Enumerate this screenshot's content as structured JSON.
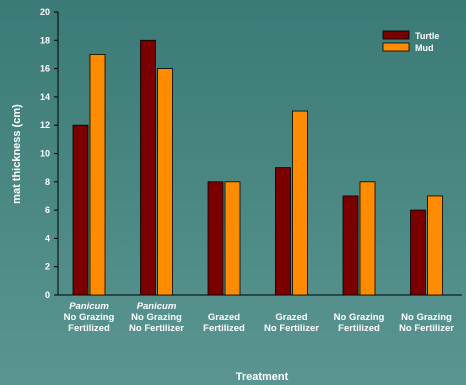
{
  "chart_data": {
    "type": "bar",
    "categories": [
      {
        "lines": [
          "Panicum",
          "No Grazing",
          "Fertilized"
        ],
        "italic_first": true
      },
      {
        "lines": [
          "Panicum",
          "No Grazing",
          "No Fertilizer"
        ],
        "italic_first": true
      },
      {
        "lines": [
          "Grazed",
          "Fertilized"
        ],
        "italic_first": false
      },
      {
        "lines": [
          "Grazed",
          "No Fertilizer"
        ],
        "italic_first": false
      },
      {
        "lines": [
          "No Grazing",
          "Fertilized"
        ],
        "italic_first": false
      },
      {
        "lines": [
          "No Grazing",
          "No Fertilizer"
        ],
        "italic_first": false
      }
    ],
    "series": [
      {
        "name": "Turtle",
        "color": "#7a0000",
        "values": [
          12,
          18,
          8,
          9,
          7,
          6
        ]
      },
      {
        "name": "Mud",
        "color": "#ff8c00",
        "values": [
          17,
          16,
          8,
          13,
          8,
          7
        ]
      }
    ],
    "xlabel": "Treatment",
    "ylabel": "mat thickness (cm)",
    "ylim": [
      0,
      20
    ],
    "yticks": [
      0,
      2,
      4,
      6,
      8,
      10,
      12,
      14,
      16,
      18,
      20
    ],
    "grid": false,
    "legend_position": "top-right"
  }
}
